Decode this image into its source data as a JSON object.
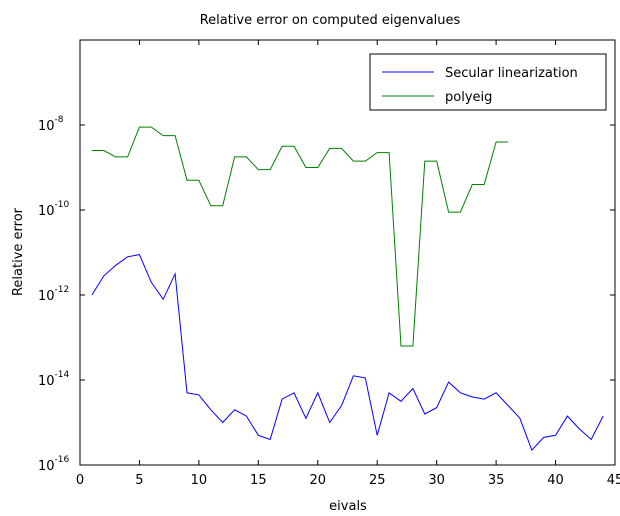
{
  "chart_data": {
    "type": "line",
    "title": "Relative error on computed eigenvalues",
    "xlabel": "eivals",
    "ylabel": "Relative error",
    "xlim": [
      0,
      45
    ],
    "ylim_log10": [
      -16,
      -6
    ],
    "yscale": "log",
    "x_ticks": [
      "0",
      "5",
      "10",
      "15",
      "20",
      "25",
      "30",
      "35",
      "40",
      "45"
    ],
    "y_ticks": [
      {
        "base": "10",
        "exp": "-16"
      },
      {
        "base": "10",
        "exp": "-14"
      },
      {
        "base": "10",
        "exp": "-12"
      },
      {
        "base": "10",
        "exp": "-10"
      },
      {
        "base": "10",
        "exp": "-8"
      }
    ],
    "legend_position": "top-right",
    "grid": false,
    "series": [
      {
        "name": "Secular linearization",
        "color": "#0000ff",
        "x": [
          1,
          2,
          3,
          4,
          5,
          6,
          7,
          8,
          9,
          10,
          11,
          12,
          13,
          14,
          15,
          16,
          17,
          18,
          19,
          20,
          21,
          22,
          23,
          24,
          25,
          26,
          27,
          28,
          29,
          30,
          31,
          32,
          33,
          34,
          35,
          36,
          37,
          38,
          39,
          40,
          41,
          42,
          43,
          44
        ],
        "log10_y": [
          -12.0,
          -11.55,
          -11.3,
          -11.1,
          -11.05,
          -11.7,
          -12.1,
          -11.5,
          -14.3,
          -14.35,
          -14.7,
          -15.0,
          -14.7,
          -14.85,
          -15.3,
          -15.4,
          -14.45,
          -14.3,
          -14.9,
          -14.3,
          -15.0,
          -14.6,
          -13.9,
          -13.95,
          -15.3,
          -14.3,
          -14.5,
          -14.2,
          -14.8,
          -14.65,
          -14.05,
          -14.3,
          -14.4,
          -14.45,
          -14.3,
          -14.6,
          -14.9,
          -15.65,
          -15.35,
          -15.3,
          -14.85,
          -15.15,
          -15.4,
          -14.85
        ]
      },
      {
        "name": "polyeig",
        "color": "#008000",
        "x": [
          1,
          2,
          3,
          4,
          5,
          6,
          7,
          8,
          9,
          10,
          11,
          12,
          13,
          14,
          15,
          16,
          17,
          18,
          19,
          20,
          21,
          22,
          23,
          24,
          25,
          26,
          27,
          28,
          29,
          30,
          31,
          32,
          33,
          34,
          35,
          36
        ],
        "log10_y": [
          -8.6,
          -8.6,
          -8.75,
          -8.75,
          -8.05,
          -8.05,
          -8.25,
          -8.25,
          -9.3,
          -9.3,
          -9.9,
          -9.9,
          -8.75,
          -8.75,
          -9.05,
          -9.05,
          -8.5,
          -8.5,
          -9.0,
          -9.0,
          -8.55,
          -8.55,
          -8.85,
          -8.85,
          -8.65,
          -8.65,
          -13.2,
          -13.2,
          -8.85,
          -8.85,
          -10.05,
          -10.05,
          -9.4,
          -9.4,
          -8.4,
          -8.4
        ]
      }
    ]
  }
}
